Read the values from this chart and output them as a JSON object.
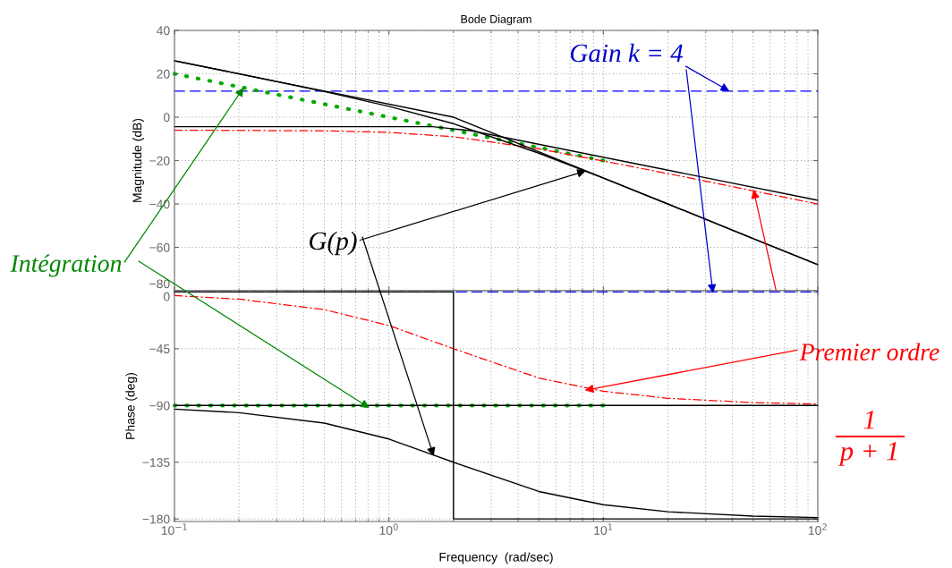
{
  "chart_data": [
    {
      "type": "line",
      "title": "Bode Diagram",
      "ylabel": "Magnitude (dB)",
      "log": "x",
      "grid": true,
      "tick_labels": "y",
      "xlim": [
        0.1,
        100
      ],
      "ylim": [
        -80,
        40
      ],
      "xticks": [
        0.1,
        1,
        10,
        100
      ],
      "yticks": [
        {
          "value": -80,
          "label": "−80"
        },
        {
          "value": -60,
          "label": "−60"
        },
        {
          "value": -40,
          "label": "−40"
        },
        {
          "value": -20,
          "label": "−20"
        },
        0,
        20,
        40
      ],
      "series": [
        {
          "color": "#0000ff",
          "line_style": "dashed",
          "x": [
            0.1,
            100
          ],
          "values": [
            12,
            12
          ]
        },
        {
          "color": "#00aa00",
          "line_style": "dotted",
          "x": [
            0.1,
            0.2,
            0.5,
            1,
            2,
            5,
            10
          ],
          "values": [
            20,
            14,
            6,
            0,
            -6,
            -14,
            -20
          ]
        },
        {
          "color": "#ff0000",
          "line_style": "dashdot",
          "x": [
            0.1,
            0.5,
            1,
            2,
            5,
            10,
            20,
            50,
            100
          ],
          "values": [
            -6,
            -6.3,
            -7,
            -9,
            -14.6,
            -20.2,
            -26,
            -34,
            -40
          ]
        },
        {
          "color": "#000000",
          "line_style": "solid",
          "x": [
            0.1,
            1.6,
            2.4,
            100
          ],
          "values": [
            -4.4,
            -4.4,
            -6.2,
            -38.3
          ]
        },
        {
          "color": "#000000",
          "line_style": "solid",
          "x": [
            0.1,
            2,
            100
          ],
          "values": [
            26,
            0,
            -68
          ]
        },
        {
          "color": "#000000",
          "line_style": "solid",
          "x": [
            0.1,
            0.2,
            0.5,
            1,
            2,
            5,
            10,
            20,
            50,
            100
          ],
          "values": [
            26,
            20,
            11.8,
            5,
            -3,
            -16.6,
            -28.1,
            -40,
            -56,
            -68
          ]
        }
      ],
      "annotations": [
        {
          "text": "Gain k = 4",
          "x": 38.7,
          "y": 12
        },
        {
          "text": "Intégration",
          "x": 0.21,
          "y": 13.6
        },
        {
          "text": "G(p)",
          "x": 8.3,
          "y": -24.7
        }
      ]
    },
    {
      "type": "line",
      "xlabel": "Frequency  (rad/sec)",
      "ylabel": "Phase (deg)",
      "log": "x",
      "grid": true,
      "xlim": [
        0.1,
        100
      ],
      "ylim": [
        -182,
        1
      ],
      "xticks": [
        {
          "value": 0.1,
          "label": "10$^{−1}$"
        },
        {
          "value": 1,
          "label": "10$^{0}$"
        },
        {
          "value": 10,
          "label": "10$^{1}$"
        },
        {
          "value": 100,
          "label": "10$^{2}$"
        }
      ],
      "yticks": [
        {
          "value": -180,
          "label": "−180"
        },
        {
          "value": -135,
          "label": "−135"
        },
        {
          "value": -90,
          "label": "−90"
        },
        {
          "value": -45,
          "label": "−45"
        },
        0
      ],
      "series": [
        {
          "color": "#0000ff",
          "line_style": "dashed",
          "x": [
            0.1,
            100
          ],
          "values": [
            0,
            0
          ]
        },
        {
          "color": "#00aa00",
          "line_style": "dotted",
          "x": [
            0.1,
            1,
            10
          ],
          "values": [
            -90,
            -90,
            -90
          ]
        },
        {
          "color": "#ff0000",
          "line_style": "dashdot",
          "x": [
            0.1,
            0.2,
            0.5,
            1,
            2,
            5,
            10,
            20,
            50,
            100
          ],
          "values": [
            -2.9,
            -5.7,
            -14,
            -26.6,
            -45,
            -68.2,
            -78.7,
            -84.3,
            -87.7,
            -88.9
          ]
        },
        {
          "color": "#000000",
          "line_style": "solid",
          "x": [
            0.1,
            2,
            2,
            100
          ],
          "values": [
            0,
            0,
            -90,
            -90
          ]
        },
        {
          "color": "#000000",
          "line_style": "solid",
          "x": [
            0.1,
            2,
            2,
            100
          ],
          "values": [
            -90,
            -90,
            -180,
            -180
          ]
        },
        {
          "color": "#000000",
          "line_style": "solid",
          "x": [
            0.1,
            0.2,
            0.5,
            1,
            2,
            5,
            10,
            20,
            50,
            100
          ],
          "values": [
            -92.9,
            -95.7,
            -104,
            -116.6,
            -135,
            -158.2,
            -168.7,
            -174.3,
            -177.7,
            -178.9
          ]
        }
      ],
      "annotations": [
        {
          "text": "Premier ordre",
          "x": 8.2,
          "y": -78
        },
        "1",
        "p + 1"
      ]
    }
  ]
}
